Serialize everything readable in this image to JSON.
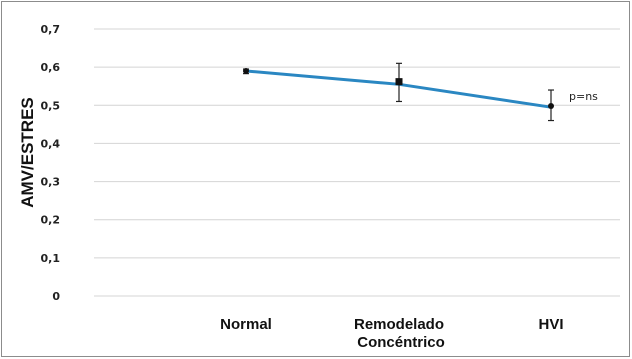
{
  "chart_data": {
    "type": "line",
    "title": "",
    "ylabel": "AMV/ESTRES",
    "xlabel": "",
    "categories": [
      [
        "Normal"
      ],
      [
        "Remodelado",
        "Concéntrico"
      ],
      [
        "HVI"
      ]
    ],
    "series": [
      {
        "values": [
          0.59,
          0.555,
          0.495
        ],
        "markers": [
          0.59,
          0.562,
          0.498
        ],
        "error_low": [
          0.583,
          0.51,
          0.46
        ],
        "error_high": [
          0.595,
          0.61,
          0.54
        ],
        "color": "#2a87c2"
      }
    ],
    "ylim": [
      0,
      0.7
    ],
    "yticks": [
      {
        "v": 0,
        "label": "0"
      },
      {
        "v": 0.1,
        "label": "0,1"
      },
      {
        "v": 0.2,
        "label": "0,2"
      },
      {
        "v": 0.3,
        "label": "0,3"
      },
      {
        "v": 0.4,
        "label": "0,4"
      },
      {
        "v": 0.5,
        "label": "0,5"
      },
      {
        "v": 0.6,
        "label": "0,6"
      },
      {
        "v": 0.7,
        "label": "0,7"
      }
    ],
    "grid": true,
    "legend": "none",
    "annotations": [
      {
        "text": "p=ns",
        "category_index": 2,
        "y": 0.525
      }
    ]
  }
}
